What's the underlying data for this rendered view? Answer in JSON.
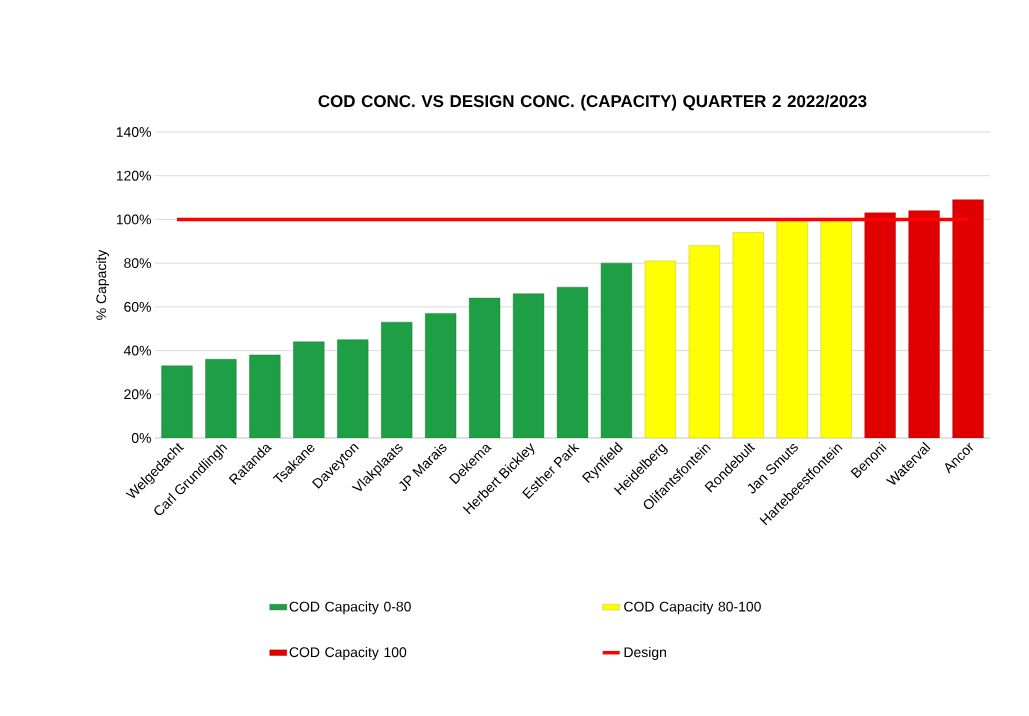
{
  "chart_data": {
    "type": "bar",
    "title": "COD CONC. VS DESIGN CONC. (CAPACITY) QUARTER 2 2022/2023",
    "ylabel": "% Capacity",
    "categories": [
      "Welgedacht",
      "Carl Grundlingh",
      "Ratanda",
      "Tsakane",
      "Daveyton",
      "Vlakplaats",
      "JP Marais",
      "Dekema",
      "Herbert Bickley",
      "Esther Park",
      "Rynfield",
      "Heidelberg",
      "Olifantsfontein",
      "Rondebult",
      "Jan Smuts",
      "Hartebeestfontein",
      "Benoni",
      "Waterval",
      "Ancor"
    ],
    "series": [
      {
        "name": "COD Capacity  0-80",
        "color": "#1e9e45",
        "values": [
          33,
          36,
          38,
          44,
          45,
          53,
          57,
          64,
          66,
          69,
          80,
          null,
          null,
          null,
          null,
          null,
          null,
          null,
          null
        ]
      },
      {
        "name": "COD Capacity 80-100",
        "color": "#ffff00",
        "values": [
          null,
          null,
          null,
          null,
          null,
          null,
          null,
          null,
          null,
          null,
          null,
          81,
          88,
          94,
          99,
          99,
          null,
          null,
          null
        ]
      },
      {
        "name": "COD Capacity 100",
        "color": "#e00000",
        "values": [
          null,
          null,
          null,
          null,
          null,
          null,
          null,
          null,
          null,
          null,
          null,
          null,
          null,
          null,
          null,
          null,
          103,
          104,
          109
        ]
      },
      {
        "name": "Design",
        "type": "line",
        "color": "#ff0000",
        "values": [
          100,
          100,
          100,
          100,
          100,
          100,
          100,
          100,
          100,
          100,
          100,
          100,
          100,
          100,
          100,
          100,
          100,
          100,
          100
        ]
      }
    ],
    "ylim": [
      0,
      140
    ],
    "yticks": [
      {
        "value": 0,
        "label": "0%"
      },
      {
        "value": 20,
        "label": "20%"
      },
      {
        "value": 40,
        "label": "40%"
      },
      {
        "value": 60,
        "label": "60%"
      },
      {
        "value": 80,
        "label": "80%"
      },
      {
        "value": 100,
        "label": "100%"
      },
      {
        "value": 120,
        "label": "120%"
      },
      {
        "value": 140,
        "label": "140%"
      }
    ],
    "grid": "y",
    "legend": "bottom"
  }
}
